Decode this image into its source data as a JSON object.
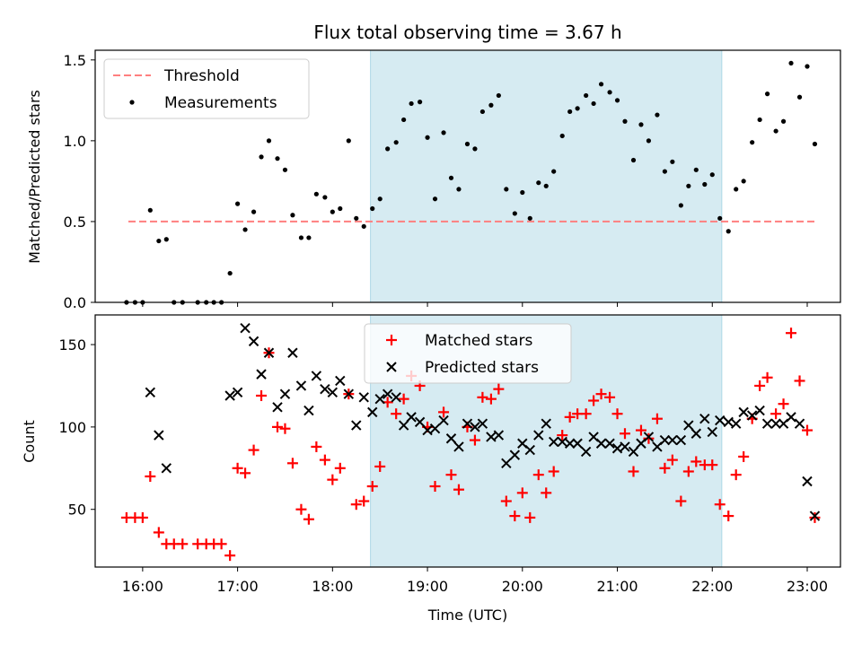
{
  "figure": {
    "title": "Flux total observing time = 3.67 h"
  },
  "chart_data": [
    {
      "type": "scatter",
      "title": "Flux total observing time = 3.67 h",
      "xlabel": "",
      "ylabel": "Matched/Predicted stars",
      "x_unit": "hours UTC",
      "xlim": [
        15.5,
        23.35
      ],
      "ylim": [
        0,
        1.56
      ],
      "yticks": [
        0.0,
        0.5,
        1.0,
        1.5
      ],
      "ytick_labels": [
        "0.0",
        "0.5",
        "1.0",
        "1.5"
      ],
      "shaded_span": {
        "start": 18.4,
        "end": 22.1,
        "color": "#add8e6"
      },
      "threshold": {
        "name": "Threshold",
        "y": 0.5,
        "x_start": 15.85,
        "x_end": 23.1,
        "color": "#ff7f7f"
      },
      "legend": {
        "placement": "upper left",
        "entries": [
          "Threshold",
          "Measurements"
        ]
      },
      "series": [
        {
          "name": "Measurements",
          "color": "#000000",
          "marker": "dot",
          "points": [
            [
              15.83,
              0
            ],
            [
              15.92,
              0
            ],
            [
              16.0,
              0
            ],
            [
              16.08,
              0.57
            ],
            [
              16.17,
              0.38
            ],
            [
              16.25,
              0.39
            ],
            [
              16.33,
              0
            ],
            [
              16.42,
              0
            ],
            [
              16.58,
              0
            ],
            [
              16.67,
              0
            ],
            [
              16.75,
              0
            ],
            [
              16.83,
              0
            ],
            [
              16.92,
              0.18
            ],
            [
              17.0,
              0.61
            ],
            [
              17.08,
              0.45
            ],
            [
              17.17,
              0.56
            ],
            [
              17.25,
              0.9
            ],
            [
              17.33,
              1.0
            ],
            [
              17.42,
              0.89
            ],
            [
              17.5,
              0.82
            ],
            [
              17.58,
              0.54
            ],
            [
              17.67,
              0.4
            ],
            [
              17.75,
              0.4
            ],
            [
              17.83,
              0.67
            ],
            [
              17.92,
              0.65
            ],
            [
              18.0,
              0.56
            ],
            [
              18.08,
              0.58
            ],
            [
              18.17,
              1.0
            ],
            [
              18.25,
              0.52
            ],
            [
              18.33,
              0.47
            ],
            [
              18.42,
              0.58
            ],
            [
              18.5,
              0.64
            ],
            [
              18.58,
              0.95
            ],
            [
              18.67,
              0.99
            ],
            [
              18.75,
              1.13
            ],
            [
              18.83,
              1.23
            ],
            [
              18.92,
              1.24
            ],
            [
              19.0,
              1.02
            ],
            [
              19.08,
              0.64
            ],
            [
              19.17,
              1.05
            ],
            [
              19.25,
              0.77
            ],
            [
              19.33,
              0.7
            ],
            [
              19.42,
              0.98
            ],
            [
              19.5,
              0.95
            ],
            [
              19.58,
              1.18
            ],
            [
              19.67,
              1.22
            ],
            [
              19.75,
              1.28
            ],
            [
              19.83,
              0.7
            ],
            [
              19.92,
              0.55
            ],
            [
              20.0,
              0.68
            ],
            [
              20.08,
              0.52
            ],
            [
              20.17,
              0.74
            ],
            [
              20.25,
              0.72
            ],
            [
              20.33,
              0.81
            ],
            [
              20.42,
              1.03
            ],
            [
              20.5,
              1.18
            ],
            [
              20.58,
              1.2
            ],
            [
              20.67,
              1.28
            ],
            [
              20.75,
              1.23
            ],
            [
              20.83,
              1.35
            ],
            [
              20.92,
              1.3
            ],
            [
              21.0,
              1.25
            ],
            [
              21.08,
              1.12
            ],
            [
              21.17,
              0.88
            ],
            [
              21.25,
              1.1
            ],
            [
              21.33,
              1.0
            ],
            [
              21.42,
              1.16
            ],
            [
              21.5,
              0.81
            ],
            [
              21.58,
              0.87
            ],
            [
              21.67,
              0.6
            ],
            [
              21.75,
              0.72
            ],
            [
              21.83,
              0.82
            ],
            [
              21.92,
              0.73
            ],
            [
              22.0,
              0.79
            ],
            [
              22.08,
              0.52
            ],
            [
              22.17,
              0.44
            ],
            [
              22.25,
              0.7
            ],
            [
              22.33,
              0.75
            ],
            [
              22.42,
              0.99
            ],
            [
              22.5,
              1.13
            ],
            [
              22.58,
              1.29
            ],
            [
              22.67,
              1.06
            ],
            [
              22.75,
              1.12
            ],
            [
              22.83,
              1.48
            ],
            [
              22.92,
              1.27
            ],
            [
              23.0,
              1.46
            ],
            [
              23.08,
              0.98
            ]
          ]
        }
      ]
    },
    {
      "type": "scatter",
      "xlabel": "Time (UTC)",
      "ylabel": "Count",
      "x_unit": "hours UTC",
      "xlim": [
        15.5,
        23.35
      ],
      "ylim": [
        15,
        168
      ],
      "xticks": [
        16,
        17,
        18,
        19,
        20,
        21,
        22,
        23
      ],
      "xtick_labels": [
        "16:00",
        "17:00",
        "18:00",
        "19:00",
        "20:00",
        "21:00",
        "22:00",
        "23:00"
      ],
      "yticks": [
        50,
        100,
        150
      ],
      "ytick_labels": [
        "50",
        "100",
        "150"
      ],
      "shaded_span": {
        "start": 18.4,
        "end": 22.1,
        "color": "#add8e6"
      },
      "legend": {
        "placement": "upper center",
        "entries": [
          "Matched stars",
          "Predicted stars"
        ]
      },
      "series": [
        {
          "name": "Matched stars",
          "color": "#ff0000",
          "marker": "plus",
          "points": [
            [
              15.83,
              45
            ],
            [
              15.92,
              45
            ],
            [
              16.0,
              45
            ],
            [
              16.08,
              70
            ],
            [
              16.17,
              36
            ],
            [
              16.25,
              29
            ],
            [
              16.33,
              29
            ],
            [
              16.42,
              29
            ],
            [
              16.58,
              29
            ],
            [
              16.67,
              29
            ],
            [
              16.75,
              29
            ],
            [
              16.83,
              29
            ],
            [
              16.92,
              22
            ],
            [
              17.0,
              75
            ],
            [
              17.08,
              72
            ],
            [
              17.17,
              86
            ],
            [
              17.25,
              119
            ],
            [
              17.33,
              145
            ],
            [
              17.42,
              100
            ],
            [
              17.5,
              99
            ],
            [
              17.58,
              78
            ],
            [
              17.67,
              50
            ],
            [
              17.75,
              44
            ],
            [
              17.83,
              88
            ],
            [
              17.92,
              80
            ],
            [
              18.0,
              68
            ],
            [
              18.08,
              75
            ],
            [
              18.17,
              120
            ],
            [
              18.25,
              53
            ],
            [
              18.33,
              55
            ],
            [
              18.42,
              64
            ],
            [
              18.5,
              76
            ],
            [
              18.58,
              115
            ],
            [
              18.67,
              108
            ],
            [
              18.75,
              117
            ],
            [
              18.83,
              131
            ],
            [
              18.92,
              125
            ],
            [
              19.0,
              100
            ],
            [
              19.08,
              64
            ],
            [
              19.17,
              109
            ],
            [
              19.25,
              71
            ],
            [
              19.33,
              62
            ],
            [
              19.42,
              100
            ],
            [
              19.5,
              92
            ],
            [
              19.58,
              118
            ],
            [
              19.67,
              117
            ],
            [
              19.75,
              123
            ],
            [
              19.83,
              55
            ],
            [
              19.92,
              46
            ],
            [
              20.0,
              60
            ],
            [
              20.08,
              45
            ],
            [
              20.17,
              71
            ],
            [
              20.25,
              60
            ],
            [
              20.33,
              73
            ],
            [
              20.42,
              95
            ],
            [
              20.5,
              106
            ],
            [
              20.58,
              108
            ],
            [
              20.67,
              108
            ],
            [
              20.75,
              116
            ],
            [
              20.83,
              120
            ],
            [
              20.92,
              118
            ],
            [
              21.0,
              108
            ],
            [
              21.08,
              96
            ],
            [
              21.17,
              73
            ],
            [
              21.25,
              98
            ],
            [
              21.33,
              93
            ],
            [
              21.42,
              105
            ],
            [
              21.5,
              75
            ],
            [
              21.58,
              80
            ],
            [
              21.67,
              55
            ],
            [
              21.75,
              73
            ],
            [
              21.83,
              79
            ],
            [
              21.92,
              77
            ],
            [
              22.0,
              77
            ],
            [
              22.08,
              53
            ],
            [
              22.17,
              46
            ],
            [
              22.25,
              71
            ],
            [
              22.33,
              82
            ],
            [
              22.42,
              105
            ],
            [
              22.5,
              125
            ],
            [
              22.58,
              130
            ],
            [
              22.67,
              108
            ],
            [
              22.75,
              114
            ],
            [
              22.83,
              157
            ],
            [
              22.92,
              128
            ],
            [
              23.0,
              98
            ],
            [
              23.08,
              45
            ]
          ]
        },
        {
          "name": "Predicted stars",
          "color": "#000000",
          "marker": "x",
          "points": [
            [
              16.08,
              121
            ],
            [
              16.17,
              95
            ],
            [
              16.25,
              75
            ],
            [
              16.92,
              119
            ],
            [
              17.0,
              121
            ],
            [
              17.08,
              160
            ],
            [
              17.17,
              152
            ],
            [
              17.25,
              132
            ],
            [
              17.33,
              145
            ],
            [
              17.42,
              112
            ],
            [
              17.5,
              120
            ],
            [
              17.58,
              145
            ],
            [
              17.67,
              125
            ],
            [
              17.75,
              110
            ],
            [
              17.83,
              131
            ],
            [
              17.92,
              123
            ],
            [
              18.0,
              121
            ],
            [
              18.08,
              128
            ],
            [
              18.17,
              120
            ],
            [
              18.25,
              101
            ],
            [
              18.33,
              118
            ],
            [
              18.42,
              109
            ],
            [
              18.5,
              117
            ],
            [
              18.58,
              120
            ],
            [
              18.67,
              118
            ],
            [
              18.75,
              101
            ],
            [
              18.83,
              106
            ],
            [
              18.92,
              103
            ],
            [
              19.0,
              98
            ],
            [
              19.08,
              99
            ],
            [
              19.17,
              104
            ],
            [
              19.25,
              93
            ],
            [
              19.33,
              88
            ],
            [
              19.42,
              102
            ],
            [
              19.5,
              100
            ],
            [
              19.58,
              102
            ],
            [
              19.67,
              94
            ],
            [
              19.75,
              95
            ],
            [
              19.83,
              78
            ],
            [
              19.92,
              83
            ],
            [
              20.0,
              90
            ],
            [
              20.08,
              86
            ],
            [
              20.17,
              95
            ],
            [
              20.25,
              102
            ],
            [
              20.33,
              91
            ],
            [
              20.42,
              91
            ],
            [
              20.5,
              90
            ],
            [
              20.58,
              90
            ],
            [
              20.67,
              85
            ],
            [
              20.75,
              94
            ],
            [
              20.83,
              90
            ],
            [
              20.92,
              90
            ],
            [
              21.0,
              87
            ],
            [
              21.08,
              88
            ],
            [
              21.17,
              85
            ],
            [
              21.25,
              90
            ],
            [
              21.33,
              94
            ],
            [
              21.42,
              88
            ],
            [
              21.5,
              92
            ],
            [
              21.58,
              92
            ],
            [
              21.67,
              92
            ],
            [
              21.75,
              101
            ],
            [
              21.83,
              96
            ],
            [
              21.92,
              105
            ],
            [
              22.0,
              97
            ],
            [
              22.08,
              104
            ],
            [
              22.17,
              103
            ],
            [
              22.25,
              102
            ],
            [
              22.33,
              109
            ],
            [
              22.42,
              107
            ],
            [
              22.5,
              110
            ],
            [
              22.58,
              102
            ],
            [
              22.67,
              102
            ],
            [
              22.75,
              102
            ],
            [
              22.83,
              106
            ],
            [
              22.92,
              102
            ],
            [
              23.0,
              67
            ],
            [
              23.08,
              46
            ]
          ]
        }
      ]
    }
  ]
}
